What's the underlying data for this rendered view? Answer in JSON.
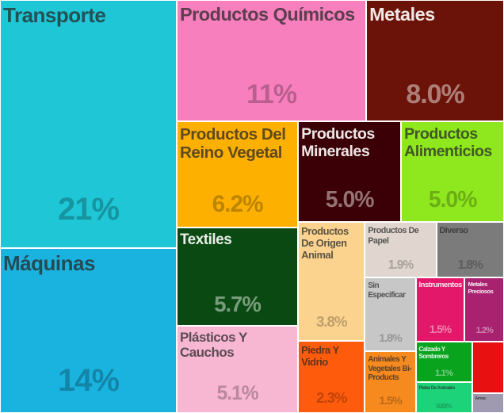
{
  "chart_data": {
    "type": "treemap",
    "categories": [
      "Transporte",
      "Máquinas",
      "Productos Químicos",
      "Metales",
      "Productos Del Reino Vegetal",
      "Textiles",
      "Plásticos Y Cauchos",
      "Productos Minerales",
      "Productos Alimenticios",
      "Productos De Origen Animal",
      "Piedra Y Vidrio",
      "Productos De Papel",
      "Diverso",
      "Sin Especificar",
      "Animales Y Vegetales Bi-Products",
      "Instrumentos",
      "Metales Preciosos",
      "Calzado Y Sombreros",
      "Pieles De Animales",
      null,
      "Armas"
    ],
    "values": [
      21,
      14,
      11,
      8.0,
      6.2,
      5.7,
      5.1,
      5.0,
      5.0,
      3.8,
      2.3,
      1.9,
      1.8,
      1.8,
      1.5,
      1.5,
      1.2,
      1.1,
      0.83,
      0.8,
      0.3
    ],
    "value_labels": [
      "21%",
      "14%",
      "11%",
      "8.0%",
      "6.2%",
      "5.7%",
      "5.1%",
      "5.0%",
      "5.0%",
      "3.8%",
      "2.3%",
      "1.9%",
      "1.8%",
      "1.8%",
      "1.5%",
      "1.5%",
      "1.2%",
      "1.1%",
      "0.83%",
      null,
      null
    ],
    "colors": [
      "#1ec6d6",
      "#1ab3e0",
      "#f77fbe",
      "#6b1308",
      "#fdb000",
      "#0a4a12",
      "#f7b6d2",
      "#3b0005",
      "#8fe81e",
      "#fbd38f",
      "#ff5b0c",
      "#e0d6cf",
      "#7b7b7b",
      "#c7c7c7",
      "#f68a1e",
      "#e3186a",
      "#a8226f",
      "#0aa31e",
      "#1dd37a",
      "#e81010",
      "#a09ab0"
    ]
  }
}
